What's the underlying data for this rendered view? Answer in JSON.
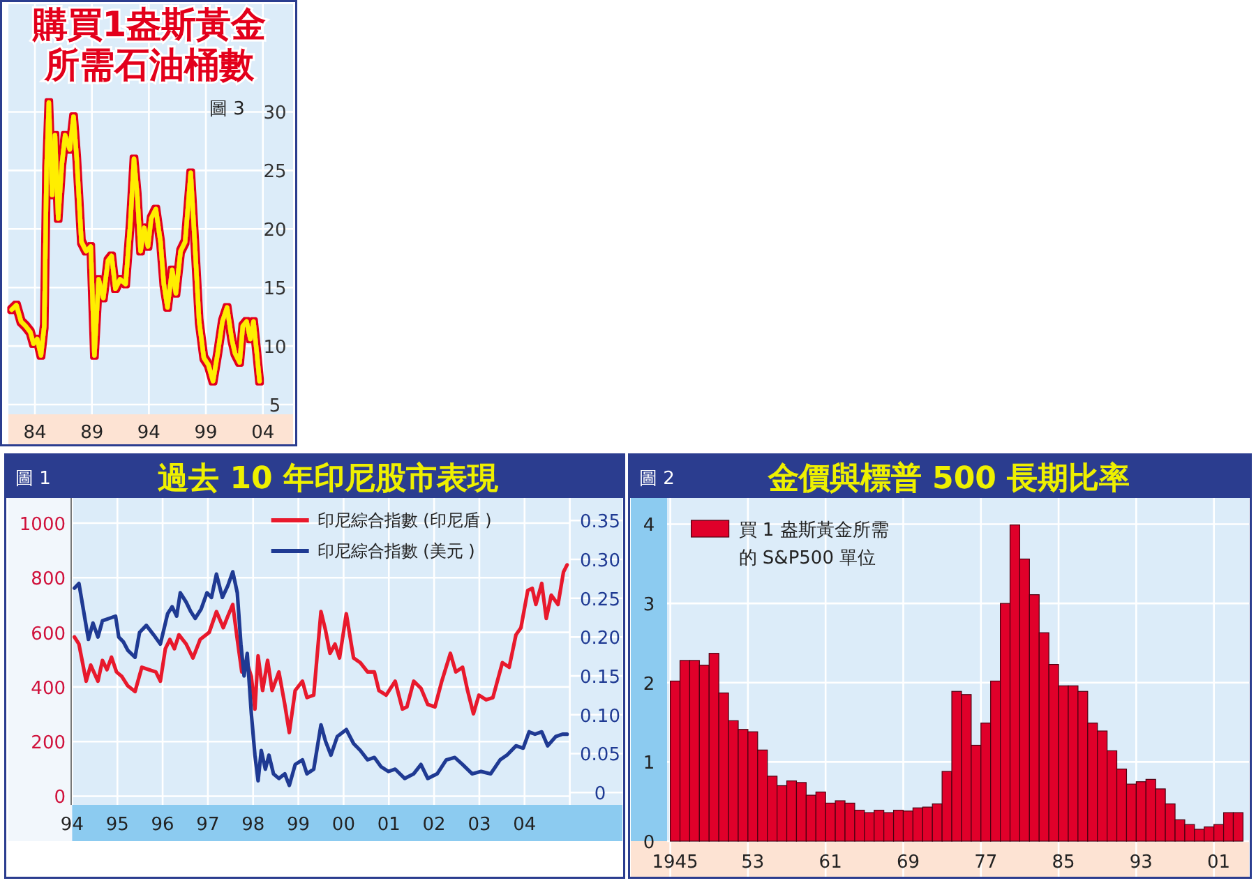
{
  "chart_data": [
    {
      "type": "line",
      "title": "購買1盎斯黃金所需石油桶數",
      "annotations": [
        "圖 3"
      ],
      "xlim": [
        1981.67,
        2006.65
      ],
      "ylim": [
        4.17,
        39.2
      ],
      "xticks": [
        {
          "value": 1984,
          "label": "84"
        },
        {
          "value": 1989,
          "label": "89"
        },
        {
          "value": 1994,
          "label": "94"
        },
        {
          "value": 1999,
          "label": "99"
        },
        {
          "value": 2004,
          "label": "04"
        }
      ],
      "yticks": [
        5,
        10,
        15,
        20,
        25,
        30
      ],
      "grid": true,
      "color": "#ffee00",
      "x": [
        1981.96,
        1982.37,
        1982.78,
        1983.18,
        1983.59,
        1983.88,
        1984.2,
        1984.53,
        1984.82,
        1985.02,
        1985.22,
        1985.51,
        1985.76,
        1986.04,
        1986.37,
        1986.65,
        1987.06,
        1987.39,
        1987.67,
        1988.08,
        1988.49,
        1988.9,
        1989.22,
        1989.59,
        1990.0,
        1990.41,
        1990.73,
        1991.06,
        1991.47,
        1991.96,
        1992.37,
        1992.69,
        1992.98,
        1993.27,
        1993.59,
        1993.92,
        1994.2,
        1994.61,
        1995.02,
        1995.31,
        1995.63,
        1996.04,
        1996.37,
        1996.78,
        1997.18,
        1997.67,
        1998.0,
        1998.41,
        1998.82,
        1999.22,
        1999.63,
        2000.04,
        2000.45,
        2000.86,
        2001.27,
        2001.55,
        2001.96,
        2002.24,
        2002.57,
        2002.9,
        2003.18,
        2003.47,
        2003.71
      ],
      "values": [
        13.1,
        13.5,
        12.1,
        11.7,
        11.2,
        10.2,
        10.6,
        9.2,
        11.7,
        25.2,
        30.8,
        22.9,
        28.0,
        20.9,
        25.6,
        28.0,
        26.8,
        29.6,
        26.0,
        18.9,
        18.1,
        18.5,
        9.2,
        15.7,
        14.1,
        17.3,
        17.7,
        14.9,
        15.7,
        15.3,
        20.5,
        26.0,
        22.9,
        18.1,
        20.1,
        18.5,
        20.9,
        21.7,
        18.9,
        15.3,
        13.3,
        16.5,
        14.5,
        18.1,
        18.9,
        24.8,
        19.3,
        12.1,
        9.0,
        8.4,
        7.0,
        9.4,
        12.1,
        13.3,
        10.6,
        9.4,
        8.6,
        11.7,
        12.1,
        10.6,
        12.1,
        9.4,
        7.0
      ]
    },
    {
      "type": "line",
      "title": "過去 10 年印尼股市表現",
      "annotations": [
        "圖 1"
      ],
      "xlim": [
        1994,
        2005
      ],
      "ylim": [
        -32,
        1092
      ],
      "y2lim": [
        -0.016,
        0.379
      ],
      "xticks": [
        {
          "value": 1994,
          "label": "94"
        },
        {
          "value": 1995,
          "label": "95"
        },
        {
          "value": 1996,
          "label": "96"
        },
        {
          "value": 1997,
          "label": "97"
        },
        {
          "value": 1998,
          "label": "98"
        },
        {
          "value": 1999,
          "label": "99"
        },
        {
          "value": 2000,
          "label": "00"
        },
        {
          "value": 2001,
          "label": "01"
        },
        {
          "value": 2002,
          "label": "02"
        },
        {
          "value": 2003,
          "label": "03"
        },
        {
          "value": 2004,
          "label": "04"
        },
        {
          "value": 2005,
          "label": null
        }
      ],
      "yticks": [
        0,
        200,
        400,
        600,
        800,
        1000
      ],
      "y2ticks": [
        0,
        {
          "value": 0.05,
          "label": "0.05"
        },
        {
          "value": 0.1,
          "label": "0.10"
        },
        {
          "value": 0.15,
          "label": "0.15"
        },
        {
          "value": 0.2,
          "label": "0.20"
        },
        {
          "value": 0.25,
          "label": "0.25"
        },
        {
          "value": 0.3,
          "label": "0.30"
        },
        {
          "value": 0.35,
          "label": "0.35"
        }
      ],
      "grid": true,
      "legend": "top",
      "series": [
        {
          "name": "印尼綜合指數 (印尼盾 )",
          "color": "#e8192c",
          "x": [
            1994.05,
            1994.15,
            1994.31,
            1994.41,
            1994.57,
            1994.67,
            1994.77,
            1994.87,
            1994.98,
            1995.1,
            1995.23,
            1995.39,
            1995.54,
            1995.7,
            1995.85,
            1995.95,
            1996.06,
            1996.16,
            1996.26,
            1996.36,
            1996.52,
            1996.67,
            1996.83,
            1997.03,
            1997.19,
            1997.34,
            1997.44,
            1997.55,
            1997.65,
            1997.75,
            1997.85,
            1997.96,
            1998.04,
            1998.11,
            1998.21,
            1998.32,
            1998.42,
            1998.57,
            1998.7,
            1998.8,
            1998.93,
            1999.09,
            1999.19,
            1999.34,
            1999.5,
            1999.6,
            1999.7,
            1999.81,
            1999.91,
            2000.06,
            2000.22,
            2000.37,
            2000.53,
            2000.68,
            2000.78,
            2000.94,
            2001.14,
            2001.3,
            2001.4,
            2001.55,
            2001.71,
            2001.86,
            2002.02,
            2002.17,
            2002.36,
            2002.48,
            2002.63,
            2002.74,
            2002.87,
            2002.99,
            2003.15,
            2003.3,
            2003.51,
            2003.66,
            2003.81,
            2003.92,
            2004.07,
            2004.17,
            2004.25,
            2004.38,
            2004.48,
            2004.59,
            2004.74,
            2004.86,
            2004.94
          ],
          "values": [
            583,
            557,
            421,
            480,
            421,
            497,
            463,
            509,
            455,
            438,
            404,
            383,
            472,
            463,
            455,
            421,
            540,
            574,
            540,
            591,
            557,
            506,
            574,
            600,
            676,
            617,
            659,
            702,
            574,
            455,
            497,
            438,
            319,
            514,
            387,
            497,
            387,
            455,
            336,
            233,
            387,
            421,
            361,
            370,
            676,
            608,
            523,
            557,
            506,
            668,
            506,
            489,
            455,
            455,
            387,
            370,
            421,
            319,
            327,
            421,
            395,
            336,
            327,
            421,
            523,
            455,
            472,
            387,
            302,
            370,
            353,
            361,
            489,
            472,
            591,
            617,
            753,
            761,
            702,
            779,
            651,
            736,
            702,
            821,
            847
          ]
        },
        {
          "name": "印尼綜合指數 (美元 )",
          "color": "#1f3a93",
          "axis": "y2",
          "x": [
            1994.05,
            1994.15,
            1994.36,
            1994.46,
            1994.57,
            1994.67,
            1994.82,
            1994.96,
            1995.03,
            1995.13,
            1995.23,
            1995.39,
            1995.49,
            1995.64,
            1995.8,
            1995.95,
            1996.11,
            1996.21,
            1996.31,
            1996.39,
            1996.52,
            1996.62,
            1996.72,
            1996.85,
            1996.98,
            1997.08,
            1997.19,
            1997.32,
            1997.44,
            1997.55,
            1997.65,
            1997.73,
            1997.8,
            1997.87,
            1997.96,
            1998.04,
            1998.11,
            1998.18,
            1998.27,
            1998.35,
            1998.45,
            1998.57,
            1998.7,
            1998.8,
            1998.93,
            1999.09,
            1999.19,
            1999.34,
            1999.5,
            1999.6,
            1999.72,
            1999.86,
            2000.06,
            2000.22,
            2000.37,
            2000.53,
            2000.68,
            2000.83,
            2000.99,
            2001.14,
            2001.35,
            2001.55,
            2001.71,
            2001.86,
            2002.07,
            2002.27,
            2002.46,
            2002.63,
            2002.84,
            2003.04,
            2003.25,
            2003.46,
            2003.61,
            2003.81,
            2003.97,
            2004.1,
            2004.23,
            2004.38,
            2004.51,
            2004.69,
            2004.84,
            2004.94
          ],
          "values": [
            0.263,
            0.269,
            0.197,
            0.218,
            0.2,
            0.221,
            0.224,
            0.227,
            0.2,
            0.194,
            0.183,
            0.174,
            0.206,
            0.215,
            0.203,
            0.191,
            0.23,
            0.239,
            0.227,
            0.257,
            0.245,
            0.233,
            0.224,
            0.236,
            0.257,
            0.251,
            0.281,
            0.251,
            0.266,
            0.284,
            0.257,
            0.191,
            0.15,
            0.179,
            0.102,
            0.048,
            0.015,
            0.054,
            0.03,
            0.048,
            0.024,
            0.018,
            0.024,
            0.009,
            0.036,
            0.042,
            0.024,
            0.03,
            0.087,
            0.066,
            0.048,
            0.072,
            0.081,
            0.063,
            0.054,
            0.042,
            0.045,
            0.033,
            0.027,
            0.03,
            0.018,
            0.024,
            0.036,
            0.018,
            0.024,
            0.042,
            0.045,
            0.036,
            0.024,
            0.027,
            0.024,
            0.042,
            0.048,
            0.06,
            0.057,
            0.078,
            0.075,
            0.078,
            0.06,
            0.072,
            0.075,
            0.075
          ]
        }
      ]
    },
    {
      "type": "bar",
      "title": "金價與標普 500 長期比率",
      "annotations": [
        "圖 2"
      ],
      "ylim": [
        0,
        4.33
      ],
      "yticks": [
        0,
        1,
        2,
        3,
        4
      ],
      "grid": true,
      "legend": "top left",
      "categories": [
        "1945",
        null,
        null,
        null,
        null,
        null,
        null,
        null,
        "53",
        null,
        null,
        null,
        null,
        null,
        null,
        null,
        "61",
        null,
        null,
        null,
        null,
        null,
        null,
        null,
        "69",
        null,
        null,
        null,
        null,
        null,
        null,
        null,
        "77",
        null,
        null,
        null,
        null,
        null,
        null,
        null,
        "85",
        null,
        null,
        null,
        null,
        null,
        null,
        null,
        "93",
        null,
        null,
        null,
        null,
        null,
        null,
        null,
        "01",
        null,
        null
      ],
      "series": [
        {
          "name": "買 1 盎斯黃金所需的 S&P500 單位",
          "color": "#e0002a",
          "values": [
            2.02,
            2.28,
            2.28,
            2.22,
            2.37,
            1.87,
            1.52,
            1.41,
            1.38,
            1.15,
            0.82,
            0.7,
            0.76,
            0.74,
            0.58,
            0.62,
            0.48,
            0.51,
            0.48,
            0.39,
            0.36,
            0.39,
            0.36,
            0.39,
            0.38,
            0.42,
            0.43,
            0.47,
            0.88,
            1.89,
            1.85,
            1.21,
            1.49,
            2.02,
            3.0,
            3.99,
            3.56,
            3.11,
            2.63,
            2.23,
            1.96,
            1.96,
            1.89,
            1.49,
            1.39,
            1.14,
            0.91,
            0.72,
            0.75,
            0.78,
            0.66,
            0.47,
            0.27,
            0.21,
            0.15,
            0.18,
            0.21,
            0.36,
            0.36
          ]
        }
      ]
    }
  ]
}
